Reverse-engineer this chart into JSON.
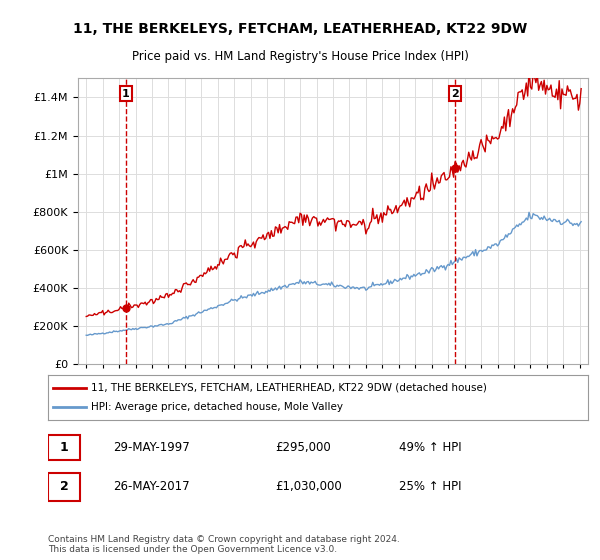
{
  "title": "11, THE BERKELEYS, FETCHAM, LEATHERHEAD, KT22 9DW",
  "subtitle": "Price paid vs. HM Land Registry's House Price Index (HPI)",
  "legend_line1": "11, THE BERKELEYS, FETCHAM, LEATHERHEAD, KT22 9DW (detached house)",
  "legend_line2": "HPI: Average price, detached house, Mole Valley",
  "footnote": "Contains HM Land Registry data © Crown copyright and database right 2024.\nThis data is licensed under the Open Government Licence v3.0.",
  "annotation1_label": "1",
  "annotation1_date": "29-MAY-1997",
  "annotation1_price": "£295,000",
  "annotation1_hpi": "49% ↑ HPI",
  "annotation2_label": "2",
  "annotation2_date": "26-MAY-2017",
  "annotation2_price": "£1,030,000",
  "annotation2_hpi": "25% ↑ HPI",
  "sale1_x": 1997.4,
  "sale1_y": 295000,
  "sale2_x": 2017.4,
  "sale2_y": 1030000,
  "hpi_color": "#6699cc",
  "price_color": "#cc0000",
  "annotation_box_color": "#cc0000",
  "grid_color": "#dddddd",
  "bg_color": "#ffffff",
  "ylim": [
    0,
    1500000
  ],
  "xlim": [
    1994.5,
    2025.5
  ]
}
